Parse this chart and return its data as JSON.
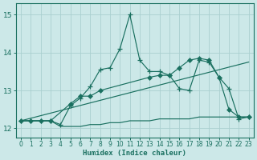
{
  "background_color": "#cce8e8",
  "grid_color": "#aad0d0",
  "line_color": "#1a7060",
  "xlabel": "Humidex (Indice chaleur)",
  "ylim": [
    11.75,
    15.3
  ],
  "xlim": [
    -0.5,
    23.5
  ],
  "yticks": [
    12,
    13,
    14,
    15
  ],
  "xticks": [
    0,
    1,
    2,
    3,
    4,
    5,
    6,
    7,
    8,
    9,
    10,
    11,
    12,
    13,
    14,
    15,
    16,
    17,
    18,
    19,
    20,
    21,
    22,
    23
  ],
  "series": [
    {
      "x": [
        0,
        1,
        2,
        3,
        4,
        5,
        6,
        7,
        8,
        9,
        10,
        11,
        12,
        13,
        14,
        15,
        16,
        17,
        18,
        19,
        20,
        21,
        22,
        23
      ],
      "y": [
        12.2,
        12.2,
        12.2,
        12.2,
        12.1,
        12.6,
        12.8,
        13.1,
        13.55,
        13.6,
        14.1,
        15.0,
        13.8,
        13.5,
        13.5,
        13.4,
        13.05,
        13.0,
        13.8,
        13.75,
        13.35,
        13.05,
        12.25,
        12.3
      ],
      "marker": "+",
      "markersize": 5
    },
    {
      "x": [
        0,
        1,
        2,
        3,
        5,
        6,
        7,
        8,
        13,
        14,
        15,
        16,
        17,
        18,
        19,
        20,
        21,
        22,
        23
      ],
      "y": [
        12.2,
        12.2,
        12.2,
        12.2,
        12.65,
        12.85,
        12.85,
        13.0,
        13.35,
        13.4,
        13.4,
        13.6,
        13.8,
        13.85,
        13.8,
        13.35,
        12.5,
        12.3,
        12.3
      ],
      "marker": "D",
      "markersize": 3
    },
    {
      "x": [
        0,
        23
      ],
      "y": [
        12.2,
        13.75
      ],
      "marker": null,
      "markersize": 0
    },
    {
      "x": [
        0,
        1,
        2,
        3,
        4,
        5,
        6,
        7,
        8,
        9,
        10,
        11,
        12,
        13,
        14,
        15,
        16,
        17,
        18,
        19,
        20,
        21,
        22,
        23
      ],
      "y": [
        12.2,
        12.2,
        12.2,
        12.2,
        12.05,
        12.05,
        12.05,
        12.1,
        12.1,
        12.15,
        12.15,
        12.2,
        12.2,
        12.2,
        12.25,
        12.25,
        12.25,
        12.25,
        12.3,
        12.3,
        12.3,
        12.3,
        12.3,
        12.3
      ],
      "marker": null,
      "markersize": 0
    }
  ]
}
